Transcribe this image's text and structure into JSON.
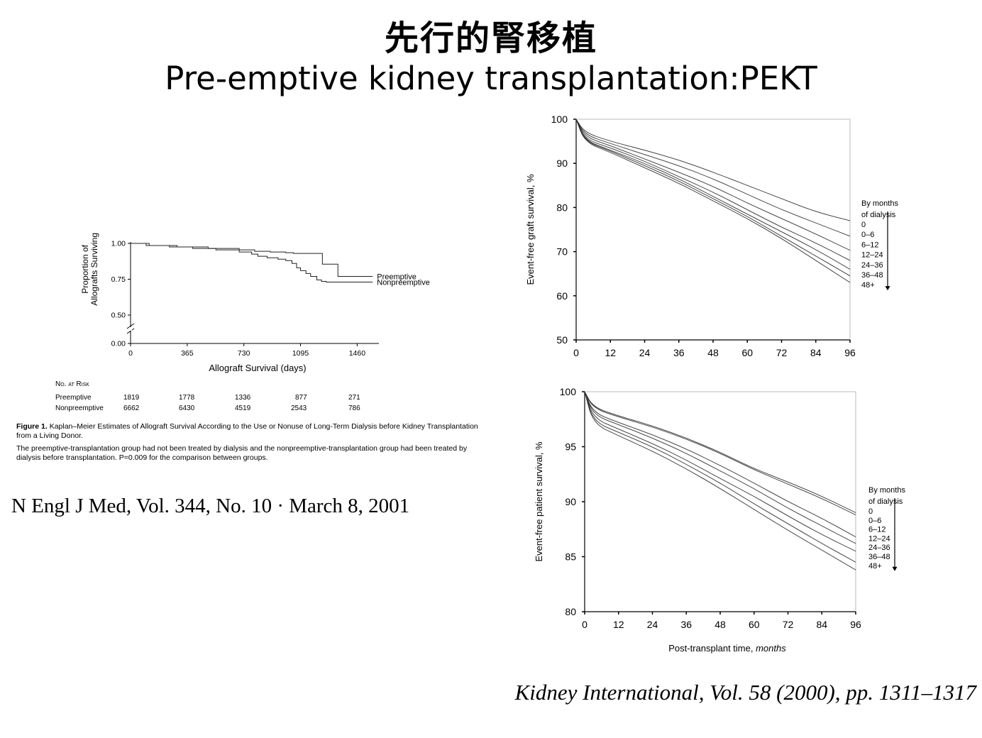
{
  "slide": {
    "title_jp": "先行的腎移植",
    "title_en": "Pre-emptive kidney transplantation:PEKT",
    "citation_nejm": "N Engl J Med, Vol. 344, No. 10 · March 8, 2001",
    "citation_ki": "Kidney International, Vol. 58 (2000), pp. 1311–1317"
  },
  "risk_table": {
    "header": "No. at Risk",
    "rows": [
      {
        "label": "Preemptive",
        "values": [
          "1819",
          "1778",
          "1336",
          "877",
          "271"
        ]
      },
      {
        "label": "Nonpreemptive",
        "values": [
          "6662",
          "6430",
          "4519",
          "2543",
          "786"
        ]
      }
    ]
  },
  "caption": {
    "fig_label": "Figure 1.",
    "line1": "Kaplan–Meier Estimates of Allograft Survival According to the Use or Nonuse of Long-Term Dialysis before Kidney Transplantation from a Living Donor.",
    "line2": "The preemptive-transplantation group had not been treated by dialysis and the nonpreemptive-transplantation group had been treated by dialysis before transplantation. P=0.009 for the comparison between groups."
  },
  "chart_data": [
    {
      "type": "line",
      "xlabel": "Allograft Survival (days)",
      "ylabel": [
        "Proportion of",
        "Allografts Surviving"
      ],
      "xticks": [
        "0",
        "365",
        "730",
        "1095",
        "1460"
      ],
      "yticks": [
        "0.00",
        "0.50",
        "0.75",
        "1.00"
      ],
      "xlim": [
        0,
        1600
      ],
      "ylim": [
        0.5,
        1.0
      ],
      "axis_break": true,
      "series": [
        {
          "name": "Preemptive",
          "style": "step",
          "points": [
            [
              0,
              1.0
            ],
            [
              120,
              0.985
            ],
            [
              300,
              0.975
            ],
            [
              500,
              0.965
            ],
            [
              700,
              0.955
            ],
            [
              800,
              0.945
            ],
            [
              900,
              0.94
            ],
            [
              1000,
              0.935
            ],
            [
              1050,
              0.93
            ],
            [
              1236,
              0.93
            ],
            [
              1236,
              0.855
            ],
            [
              1336,
              0.855
            ],
            [
              1336,
              0.77
            ],
            [
              1560,
              0.77
            ]
          ]
        },
        {
          "name": "Nonpreemptive",
          "style": "step",
          "points": [
            [
              0,
              1.0
            ],
            [
              100,
              0.985
            ],
            [
              250,
              0.975
            ],
            [
              400,
              0.965
            ],
            [
              550,
              0.955
            ],
            [
              700,
              0.94
            ],
            [
              780,
              0.925
            ],
            [
              820,
              0.91
            ],
            [
              880,
              0.9
            ],
            [
              950,
              0.89
            ],
            [
              1000,
              0.88
            ],
            [
              1040,
              0.86
            ],
            [
              1070,
              0.83
            ],
            [
              1095,
              0.81
            ],
            [
              1130,
              0.79
            ],
            [
              1160,
              0.77
            ],
            [
              1200,
              0.745
            ],
            [
              1230,
              0.735
            ],
            [
              1260,
              0.73
            ],
            [
              1300,
              0.73
            ],
            [
              1320,
              0.73
            ],
            [
              1560,
              0.73
            ]
          ]
        }
      ]
    },
    {
      "type": "line",
      "ylabel": "Event-free graft survival, %",
      "xticks": [
        "0",
        "12",
        "24",
        "36",
        "48",
        "60",
        "72",
        "84",
        "96"
      ],
      "yticks": [
        "50",
        "60",
        "70",
        "80",
        "90",
        "100"
      ],
      "xlim": [
        0,
        96
      ],
      "ylim": [
        50,
        100
      ],
      "legend_title": [
        "By months",
        "of dialysis"
      ],
      "series": [
        {
          "name": "0",
          "values": [
            [
              0,
              100
            ],
            [
              3,
              97
            ],
            [
              12,
              95
            ],
            [
              24,
              93
            ],
            [
              36,
              90.8
            ],
            [
              48,
              88
            ],
            [
              60,
              85
            ],
            [
              72,
              82
            ],
            [
              84,
              79
            ],
            [
              96,
              77
            ]
          ]
        },
        {
          "name": "0–6",
          "values": [
            [
              0,
              100
            ],
            [
              3,
              96.5
            ],
            [
              12,
              94.5
            ],
            [
              24,
              92
            ],
            [
              36,
              89.5
            ],
            [
              48,
              86.5
            ],
            [
              60,
              83
            ],
            [
              72,
              79.5
            ],
            [
              84,
              76.5
            ],
            [
              96,
              73.5
            ]
          ]
        },
        {
          "name": "6–12",
          "values": [
            [
              0,
              100
            ],
            [
              3,
              96
            ],
            [
              12,
              94
            ],
            [
              24,
              91
            ],
            [
              36,
              88
            ],
            [
              48,
              84.8
            ],
            [
              60,
              81
            ],
            [
              72,
              77.5
            ],
            [
              84,
              74
            ],
            [
              96,
              70.3
            ]
          ]
        },
        {
          "name": "12–24",
          "values": [
            [
              0,
              100
            ],
            [
              3,
              95.5
            ],
            [
              12,
              93.5
            ],
            [
              24,
              90.5
            ],
            [
              36,
              87
            ],
            [
              48,
              83.5
            ],
            [
              60,
              79.5
            ],
            [
              72,
              75.5
            ],
            [
              84,
              72
            ],
            [
              96,
              68
            ]
          ]
        },
        {
          "name": "24–36",
          "values": [
            [
              0,
              100
            ],
            [
              3,
              95.2
            ],
            [
              12,
              93
            ],
            [
              24,
              90
            ],
            [
              36,
              86.5
            ],
            [
              48,
              82.5
            ],
            [
              60,
              78.5
            ],
            [
              72,
              74.5
            ],
            [
              84,
              70.5
            ],
            [
              96,
              66
            ]
          ]
        },
        {
          "name": "36–48",
          "values": [
            [
              0,
              100
            ],
            [
              3,
              95
            ],
            [
              12,
              92.8
            ],
            [
              24,
              89.5
            ],
            [
              36,
              86
            ],
            [
              48,
              82
            ],
            [
              60,
              78
            ],
            [
              72,
              73.5
            ],
            [
              84,
              69
            ],
            [
              96,
              64.5
            ]
          ]
        },
        {
          "name": "48+",
          "values": [
            [
              0,
              100
            ],
            [
              3,
              94.8
            ],
            [
              12,
              92.5
            ],
            [
              24,
              89
            ],
            [
              36,
              85.5
            ],
            [
              48,
              81.5
            ],
            [
              60,
              77.5
            ],
            [
              72,
              73
            ],
            [
              84,
              68
            ],
            [
              96,
              63
            ]
          ]
        }
      ]
    },
    {
      "type": "line",
      "xlabel": "Post-transplant time, ",
      "xlabel_italic": "months",
      "ylabel": "Event-free patient survival, %",
      "xticks": [
        "0",
        "12",
        "24",
        "36",
        "48",
        "60",
        "72",
        "84",
        "96"
      ],
      "yticks": [
        "80",
        "85",
        "90",
        "95",
        "100"
      ],
      "xlim": [
        0,
        96
      ],
      "ylim": [
        80,
        100
      ],
      "legend_title": [
        "By months",
        "of dialysis"
      ],
      "series": [
        {
          "name": "0",
          "values": [
            [
              0,
              100
            ],
            [
              3,
              98.6
            ],
            [
              12,
              97.8
            ],
            [
              24,
              96.9
            ],
            [
              36,
              95.8
            ],
            [
              48,
              94.5
            ],
            [
              60,
              93
            ],
            [
              72,
              91.8
            ],
            [
              84,
              90.5
            ],
            [
              96,
              89
            ]
          ]
        },
        {
          "name": "0–6",
          "values": [
            [
              0,
              100
            ],
            [
              3,
              98.5
            ],
            [
              12,
              97.7
            ],
            [
              24,
              96.8
            ],
            [
              36,
              95.7
            ],
            [
              48,
              94.4
            ],
            [
              60,
              92.9
            ],
            [
              72,
              91.6
            ],
            [
              84,
              90.3
            ],
            [
              96,
              88.8
            ]
          ]
        },
        {
          "name": "6–12",
          "values": [
            [
              0,
              100
            ],
            [
              3,
              98.1
            ],
            [
              12,
              97.2
            ],
            [
              24,
              96.1
            ],
            [
              36,
              94.8
            ],
            [
              48,
              93.3
            ],
            [
              60,
              91.7
            ],
            [
              72,
              90
            ],
            [
              84,
              88.5
            ],
            [
              96,
              86.8
            ]
          ]
        },
        {
          "name": "12–24",
          "values": [
            [
              0,
              100
            ],
            [
              3,
              97.9
            ],
            [
              12,
              97
            ],
            [
              24,
              95.8
            ],
            [
              36,
              94.4
            ],
            [
              48,
              92.8
            ],
            [
              60,
              91.2
            ],
            [
              72,
              89.4
            ],
            [
              84,
              87.8
            ],
            [
              96,
              86.2
            ]
          ]
        },
        {
          "name": "24–36",
          "values": [
            [
              0,
              100
            ],
            [
              3,
              97.6
            ],
            [
              12,
              96.6
            ],
            [
              24,
              95.3
            ],
            [
              36,
              93.8
            ],
            [
              48,
              92.1
            ],
            [
              60,
              90.5
            ],
            [
              72,
              88.7
            ],
            [
              84,
              87
            ],
            [
              96,
              85.5
            ]
          ]
        },
        {
          "name": "36–48",
          "values": [
            [
              0,
              100
            ],
            [
              3,
              97.3
            ],
            [
              12,
              96.3
            ],
            [
              24,
              95
            ],
            [
              36,
              93.4
            ],
            [
              48,
              91.7
            ],
            [
              60,
              89.8
            ],
            [
              72,
              88
            ],
            [
              84,
              86.2
            ],
            [
              96,
              84.5
            ]
          ]
        },
        {
          "name": "48+",
          "values": [
            [
              0,
              100
            ],
            [
              3,
              97.1
            ],
            [
              12,
              96
            ],
            [
              24,
              94.6
            ],
            [
              36,
              93
            ],
            [
              48,
              91.2
            ],
            [
              60,
              89.3
            ],
            [
              72,
              87.4
            ],
            [
              84,
              85.6
            ],
            [
              96,
              83.8
            ]
          ]
        }
      ]
    }
  ]
}
